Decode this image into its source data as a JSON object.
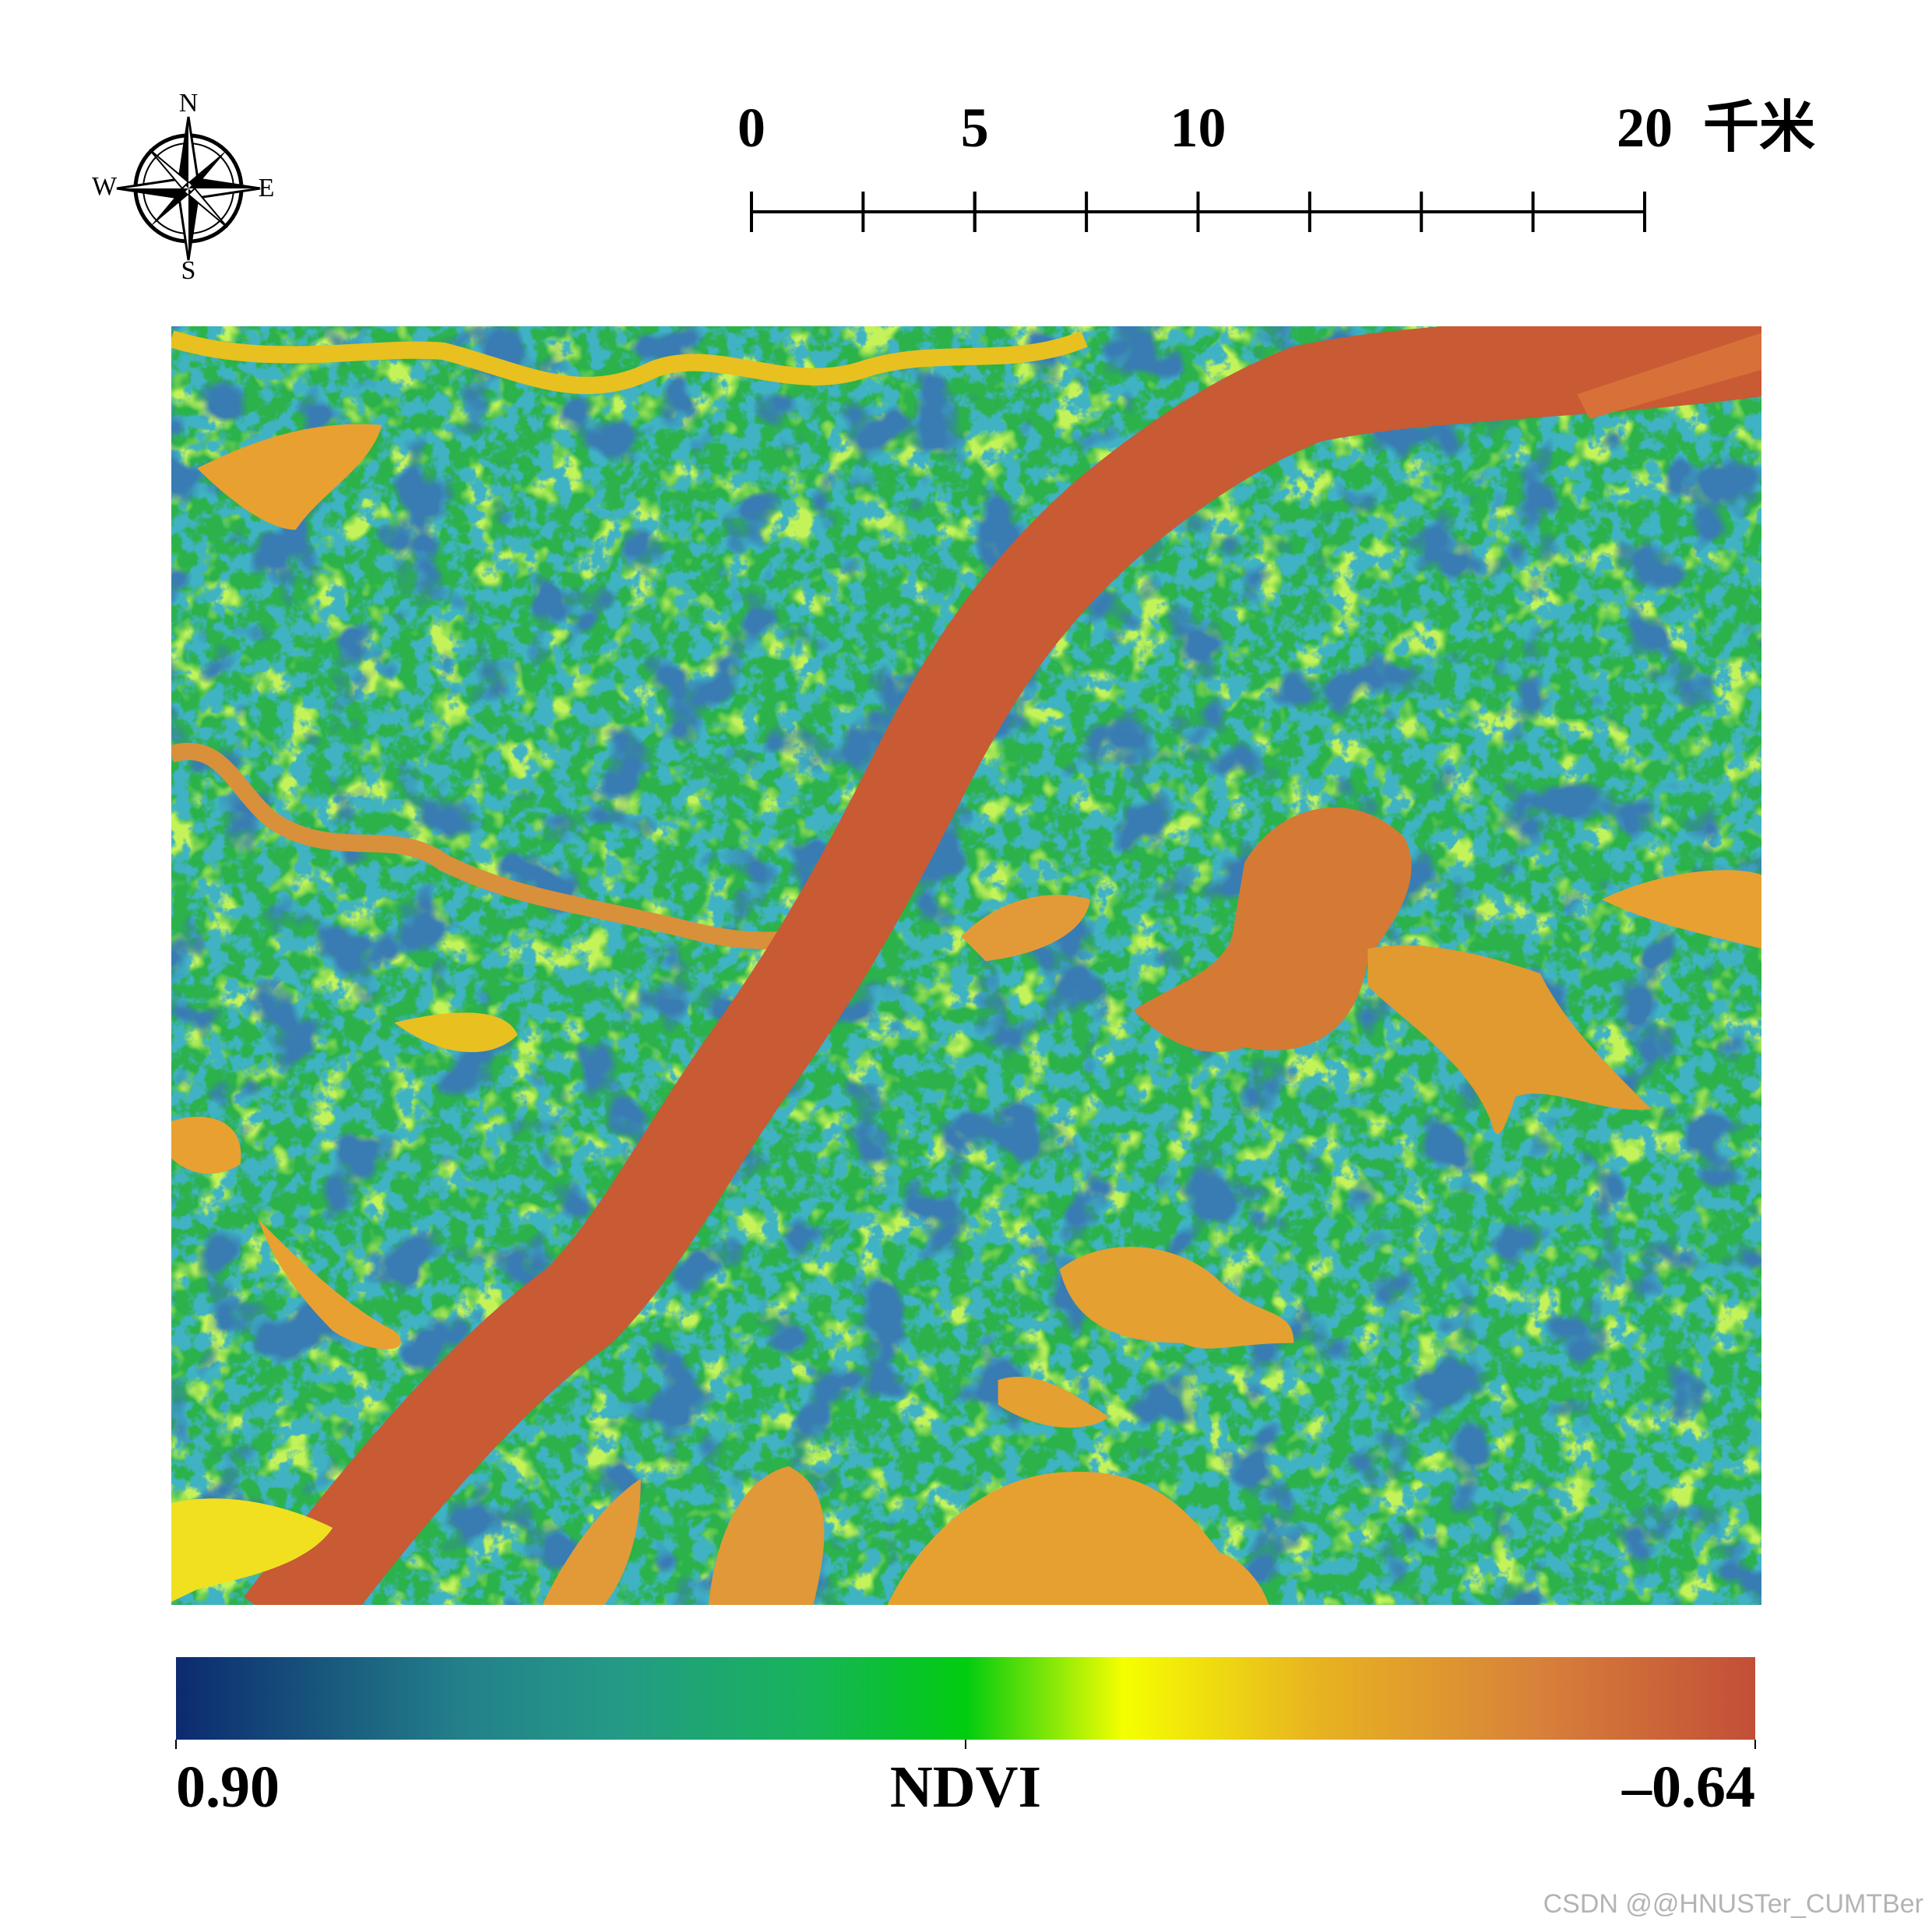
{
  "compass": {
    "north": "N",
    "south": "S",
    "west": "W",
    "east": "E"
  },
  "scale_bar": {
    "ticks": [
      0,
      5,
      10,
      20
    ],
    "unit": "千米"
  },
  "legend": {
    "low_label": "0.90",
    "title": "NDVI",
    "high_label": "–0.64"
  },
  "watermark": "CSDN @@HNUSTer_CUMTBer"
}
